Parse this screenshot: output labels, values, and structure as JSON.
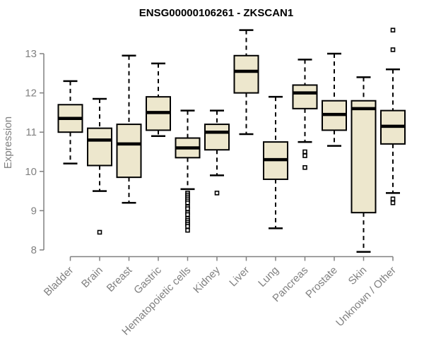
{
  "title": "ENSG00000106261 - ZKSCAN1",
  "chart_data": {
    "type": "boxplot",
    "title": "ENSG00000106261 - ZKSCAN1",
    "xlabel": "",
    "ylabel": "Expression",
    "ylim": [
      7.8,
      13.7
    ],
    "yticks": [
      8,
      9,
      10,
      11,
      12,
      13
    ],
    "grid": false,
    "legend": false,
    "categories": [
      "Bladder",
      "Brain",
      "Breast",
      "Gastric",
      "Hematopoietic cells",
      "Kidney",
      "Liver",
      "Lung",
      "Pancreas",
      "Prostate",
      "Skin",
      "Unknown / Other"
    ],
    "boxes": [
      {
        "category": "Bladder",
        "low": 10.2,
        "q1": 11.0,
        "median": 11.35,
        "q3": 11.7,
        "high": 12.3,
        "outliers": []
      },
      {
        "category": "Brain",
        "low": 9.5,
        "q1": 10.15,
        "median": 10.8,
        "q3": 11.1,
        "high": 11.85,
        "outliers": [
          8.45
        ]
      },
      {
        "category": "Breast",
        "low": 9.2,
        "q1": 9.85,
        "median": 10.7,
        "q3": 11.2,
        "high": 12.95,
        "outliers": []
      },
      {
        "category": "Gastric",
        "low": 10.9,
        "q1": 11.05,
        "median": 11.5,
        "q3": 11.9,
        "high": 12.75,
        "outliers": []
      },
      {
        "category": "Hematopoietic cells",
        "low": 9.55,
        "q1": 10.35,
        "median": 10.6,
        "q3": 10.85,
        "high": 11.55,
        "outliers": [
          9.45,
          9.4,
          9.35,
          9.3,
          9.25,
          9.2,
          9.1,
          9.05,
          8.95,
          8.9,
          8.8,
          8.75,
          8.7,
          8.65,
          8.6,
          8.5
        ]
      },
      {
        "category": "Kidney",
        "low": 9.9,
        "q1": 10.55,
        "median": 11.0,
        "q3": 11.2,
        "high": 11.55,
        "outliers": [
          9.45
        ]
      },
      {
        "category": "Liver",
        "low": 10.95,
        "q1": 12.0,
        "median": 12.55,
        "q3": 12.95,
        "high": 13.6,
        "outliers": []
      },
      {
        "category": "Lung",
        "low": 8.55,
        "q1": 9.8,
        "median": 10.3,
        "q3": 10.75,
        "high": 11.9,
        "outliers": []
      },
      {
        "category": "Pancreas",
        "low": 10.75,
        "q1": 11.6,
        "median": 12.0,
        "q3": 12.2,
        "high": 12.85,
        "outliers": [
          10.5,
          10.4,
          10.1
        ]
      },
      {
        "category": "Prostate",
        "low": 10.65,
        "q1": 11.05,
        "median": 11.45,
        "q3": 11.8,
        "high": 13.0,
        "outliers": []
      },
      {
        "category": "Skin",
        "low": 7.95,
        "q1": 8.95,
        "median": 11.6,
        "q3": 11.8,
        "high": 12.4,
        "outliers": []
      },
      {
        "category": "Unknown / Other",
        "low": 9.45,
        "q1": 10.7,
        "median": 11.15,
        "q3": 11.55,
        "high": 12.6,
        "outliers": [
          13.6,
          13.1,
          9.3,
          9.2
        ]
      }
    ],
    "colors": {
      "box_fill": "#EDE7CD",
      "box_stroke": "#000000",
      "median": "#000000",
      "whisker": "#000000",
      "axis": "#808080",
      "labels": "#808080",
      "title": "#000000",
      "background": "#FFFFFF"
    }
  }
}
